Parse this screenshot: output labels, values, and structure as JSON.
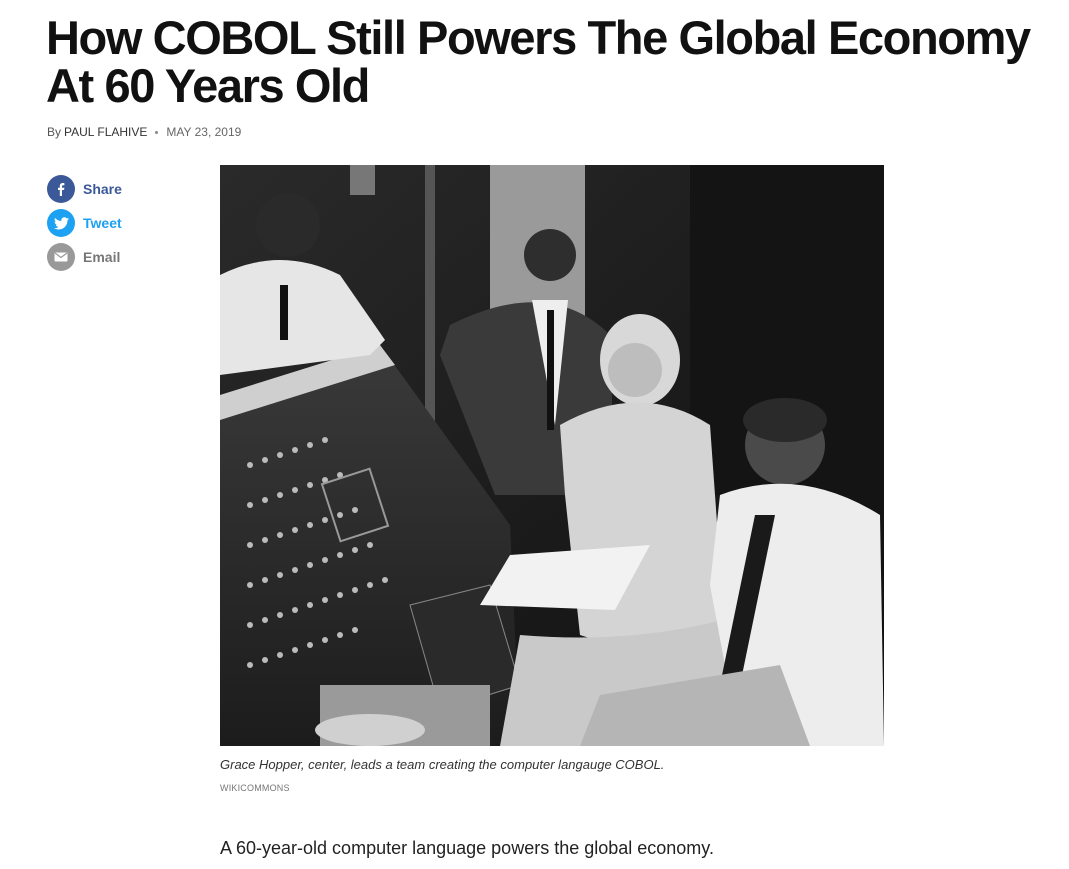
{
  "article": {
    "headline": "How COBOL Still Powers The Global Economy At 60 Years Old",
    "byline_prefix": "By",
    "author": "PAUL FLAHIVE",
    "date": "MAY 23, 2019"
  },
  "share": {
    "facebook_label": "Share",
    "twitter_label": "Tweet",
    "email_label": "Email",
    "facebook_icon": "facebook-icon",
    "twitter_icon": "twitter-icon",
    "email_icon": "email-icon"
  },
  "figure": {
    "caption": "Grace Hopper, center, leads a team creating the computer langauge COBOL.",
    "credit": "WIKICOMMONS"
  },
  "body": {
    "lede": "A 60-year-old computer language powers the global economy."
  },
  "colors": {
    "facebook": "#3b5998",
    "twitter": "#1da1f2",
    "email": "#999999"
  }
}
